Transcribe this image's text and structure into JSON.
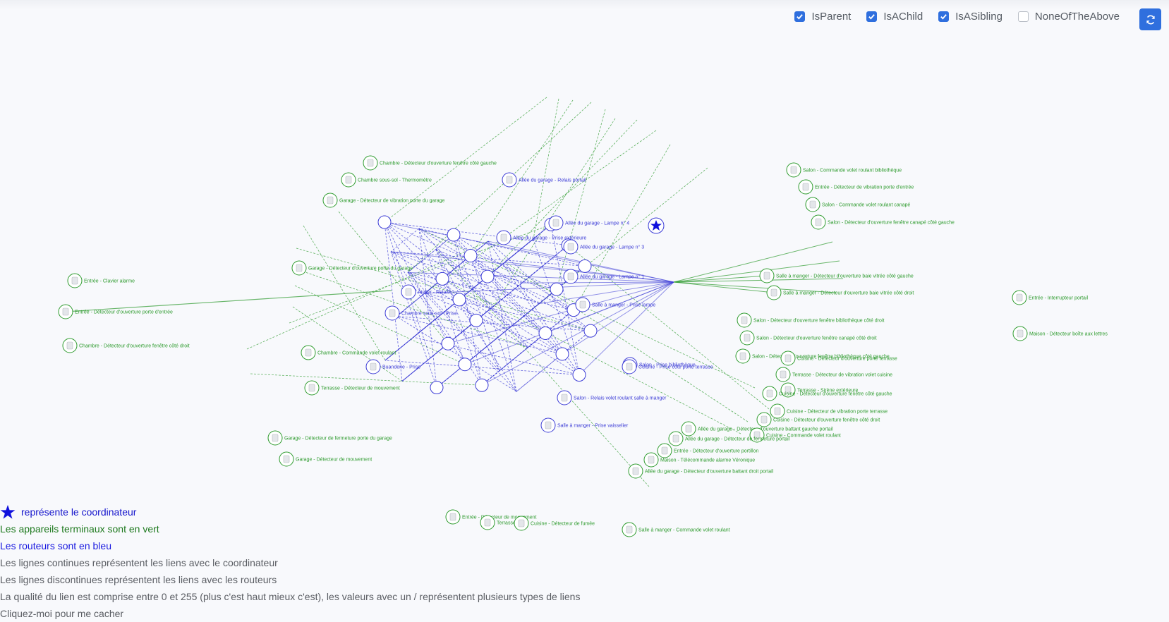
{
  "filters": [
    {
      "label": "IsParent",
      "checked": true
    },
    {
      "label": "IsAChild",
      "checked": true
    },
    {
      "label": "IsASibling",
      "checked": true
    },
    {
      "label": "NoneOfTheAbove",
      "checked": false
    }
  ],
  "refresh_icon": "refresh-icon",
  "colors": {
    "router": "#3b3bd6",
    "end_device": "#2e9b2e",
    "accent": "#2f6fde"
  },
  "legend": {
    "coordinator": "représente le coordinateur",
    "end_devices": "Les appareils terminaux sont en vert",
    "routers": "Les routeurs sont en bleu",
    "solid_lines": "Les lignes continues représentent les liens avec le coordinateur",
    "dashed_lines": "Les lignes discontinues représentent les liens avec les routeurs",
    "quality": "La qualité du lien est comprise entre 0 et 255 (plus c'est haut mieux c'est), les valeurs avec un / représentent plusieurs types de liens",
    "hide": "Cliquez-moi pour me cacher"
  },
  "devices": [
    {
      "name": "Chambre - Détecteur d'ouverture fenêtre côté gauche",
      "type": "end"
    },
    {
      "name": "Chambre sous-sol - Thermomètre",
      "type": "end"
    },
    {
      "name": "Garage - Détecteur de vibration porte du garage",
      "type": "end"
    },
    {
      "name": "Garage - Détecteur d'ouverture porte du garage",
      "type": "end"
    },
    {
      "name": "Entrée - Clavier alarme",
      "type": "end"
    },
    {
      "name": "Entrée - Détecteur d'ouverture porte d'entrée",
      "type": "end"
    },
    {
      "name": "Chambre - Détecteur d'ouverture fenêtre côté droit",
      "type": "end"
    },
    {
      "name": "Chambre - Commande volet roulant",
      "type": "end"
    },
    {
      "name": "Terrasse - Détecteur de mouvement",
      "type": "end"
    },
    {
      "name": "Garage - Détecteur de fermeture porte du garage",
      "type": "end"
    },
    {
      "name": "Garage - Détecteur de mouvement",
      "type": "end"
    },
    {
      "name": "Entrée - Détecteur de mouvement",
      "type": "end"
    },
    {
      "name": "Terrasse",
      "type": "end"
    },
    {
      "name": "Cuisine - Détecteur de fumée",
      "type": "end"
    },
    {
      "name": "Salle à manger - Commande volet roulant",
      "type": "end"
    },
    {
      "name": "Salon - Commande volet roulant bibliothèque",
      "type": "end"
    },
    {
      "name": "Entrée - Détecteur de vibration porte d'entrée",
      "type": "end"
    },
    {
      "name": "Salon - Commande volet roulant canapé",
      "type": "end"
    },
    {
      "name": "Salon - Détecteur d'ouverture fenêtre canapé côté gauche",
      "type": "end"
    },
    {
      "name": "Salle à manger - Détecteur d'ouverture baie vitrée côté gauche",
      "type": "end"
    },
    {
      "name": "Salle à manger - Détecteur d'ouverture baie vitrée côté droit",
      "type": "end"
    },
    {
      "name": "Entrée - Interrupteur portail",
      "type": "end"
    },
    {
      "name": "Maison - Détecteur boîte aux lettres",
      "type": "end"
    },
    {
      "name": "Salon - Détecteur d'ouverture fenêtre bibliothèque côté droit",
      "type": "end"
    },
    {
      "name": "Salon - Détecteur d'ouverture fenêtre canapé côté droit",
      "type": "end"
    },
    {
      "name": "Salon - Détecteur d'ouverture fenêtre bibliothèque côté gauche",
      "type": "end"
    },
    {
      "name": "Cuisine - Détecteur d'ouverture porte terrasse",
      "type": "end"
    },
    {
      "name": "Terrasse - Détecteur de vibration volet cuisine",
      "type": "end"
    },
    {
      "name": "Terrasse - Sirène extérieure",
      "type": "end"
    },
    {
      "name": "Cuisine - Détecteur d'ouverture fenêtre côté gauche",
      "type": "end"
    },
    {
      "name": "Cuisine - Détecteur de vibration porte terrasse",
      "type": "end"
    },
    {
      "name": "Cuisine - Détecteur d'ouverture fenêtre côté droit",
      "type": "end"
    },
    {
      "name": "Allée du garage - Détecteur d'ouverture battant gauche portail",
      "type": "end"
    },
    {
      "name": "Cuisine - Commande volet roulant",
      "type": "end"
    },
    {
      "name": "Allée du garage - Détecteur de fermeture portail",
      "type": "end"
    },
    {
      "name": "Entrée - Détecteur d'ouverture portillon",
      "type": "end"
    },
    {
      "name": "Maison - Télécommande alarme Véronique",
      "type": "end"
    },
    {
      "name": "Allée du garage - Détecteur d'ouverture battant droit portail",
      "type": "end"
    },
    {
      "name": "Allée du garage - Relais portail",
      "type": "router"
    },
    {
      "name": "Allée du garage - Lampe n° 4",
      "type": "router"
    },
    {
      "name": "Allée du garage - Lampe n° 3",
      "type": "router"
    },
    {
      "name": "Allée du garage - Lampe n° 1",
      "type": "router"
    },
    {
      "name": "Allée du garage - Prise extérieure",
      "type": "router"
    },
    {
      "name": "Atelier - Relais",
      "type": "router"
    },
    {
      "name": "Chambre sous-sol - Prise",
      "type": "router"
    },
    {
      "name": "Buanderie - Prise",
      "type": "router"
    },
    {
      "name": "Salon - Prise bibliothèque",
      "type": "router"
    },
    {
      "name": "Cuisine - Prise côté porte terrasse",
      "type": "router"
    },
    {
      "name": "Salon - Relais volet roulant salle à manger",
      "type": "router"
    },
    {
      "name": "Salle à manger - Prise vaisselier",
      "type": "router"
    },
    {
      "name": "Salle à manger - Prise lampe",
      "type": "router"
    }
  ]
}
